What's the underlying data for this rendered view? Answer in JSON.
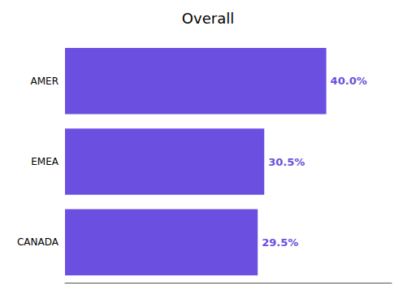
{
  "chart_data": {
    "type": "bar",
    "title": "Overall",
    "orientation": "horizontal",
    "categories": [
      "CANADA",
      "EMEA",
      "AMER"
    ],
    "values": [
      29.5,
      30.5,
      40.0
    ],
    "value_labels": [
      "29.5%",
      "30.5%",
      "40.0%"
    ],
    "data_labels": true,
    "color": "#6B4FE0",
    "xlim": [
      0,
      50
    ],
    "tick_labels": "y",
    "grid": false
  }
}
